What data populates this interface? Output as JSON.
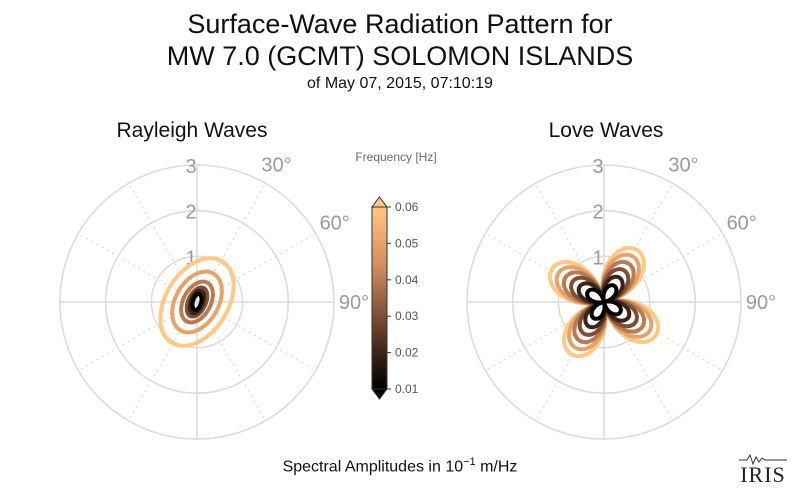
{
  "title_line1": "Surface-Wave Radiation Pattern for",
  "title_line2": "MW 7.0 (GCMT) SOLOMON ISLANDS",
  "title_line3": "of May 07, 2015, 07:10:19",
  "footer_text": "Spectral Amplitudes in 10",
  "footer_exponent": "−1",
  "footer_unit": " m/Hz",
  "logo_text": "IRIS",
  "colors": {
    "grid": "#dcdcdc",
    "axis_label": "#9a9a9a",
    "colormap_low": "#000000",
    "colormap_high": "#ffc883"
  },
  "chart_data": [
    {
      "type": "polar-line",
      "title": "Rayleigh Waves",
      "radial_ticks": [
        "1",
        "2",
        "3"
      ],
      "radial_range": [
        0,
        3
      ],
      "angle_ticks": [
        "30°",
        "60°",
        "90°"
      ],
      "grid": true,
      "color_variable": "frequency",
      "series": [
        {
          "frequency": 0.06,
          "shape": "ellipse",
          "semi_major": 1.05,
          "semi_minor": 0.68,
          "orientation_deg": 32,
          "center_offset": 0.05
        },
        {
          "frequency": 0.05,
          "shape": "ellipse",
          "semi_major": 0.72,
          "semi_minor": 0.47,
          "orientation_deg": 30,
          "center_offset": 0.03
        },
        {
          "frequency": 0.04,
          "shape": "ellipse",
          "semi_major": 0.48,
          "semi_minor": 0.3,
          "orientation_deg": 28,
          "center_offset": 0.02
        },
        {
          "frequency": 0.03,
          "shape": "ellipse",
          "semi_major": 0.34,
          "semi_minor": 0.19,
          "orientation_deg": 25,
          "center_offset": 0.0
        },
        {
          "frequency": 0.02,
          "shape": "ellipse",
          "semi_major": 0.26,
          "semi_minor": 0.13,
          "orientation_deg": 20,
          "center_offset": 0.0
        },
        {
          "frequency": 0.01,
          "shape": "ellipse",
          "semi_major": 0.18,
          "semi_minor": 0.09,
          "orientation_deg": 15,
          "center_offset": 0.0
        }
      ]
    },
    {
      "type": "polar-line",
      "title": "Love Waves",
      "radial_ticks": [
        "1",
        "2",
        "3"
      ],
      "radial_range": [
        0,
        3
      ],
      "angle_ticks": [
        "30°",
        "60°",
        "90°"
      ],
      "grid": true,
      "color_variable": "frequency",
      "series": [
        {
          "frequency": 0.06,
          "shape": "four-lobe",
          "max_amplitude": 1.35,
          "rotation_deg": 10
        },
        {
          "frequency": 0.05,
          "shape": "four-lobe",
          "max_amplitude": 1.18,
          "rotation_deg": 10
        },
        {
          "frequency": 0.04,
          "shape": "four-lobe",
          "max_amplitude": 1.0,
          "rotation_deg": 10
        },
        {
          "frequency": 0.03,
          "shape": "four-lobe",
          "max_amplitude": 0.82,
          "rotation_deg": 10
        },
        {
          "frequency": 0.02,
          "shape": "four-lobe",
          "max_amplitude": 0.63,
          "rotation_deg": 10
        },
        {
          "frequency": 0.01,
          "shape": "four-lobe",
          "max_amplitude": 0.42,
          "rotation_deg": 10
        }
      ]
    }
  ],
  "colorbar": {
    "label": "Frequency [Hz]",
    "range": [
      0.01,
      0.06
    ],
    "ticks": [
      "0.06",
      "0.05",
      "0.04",
      "0.03",
      "0.02",
      "0.01"
    ]
  }
}
